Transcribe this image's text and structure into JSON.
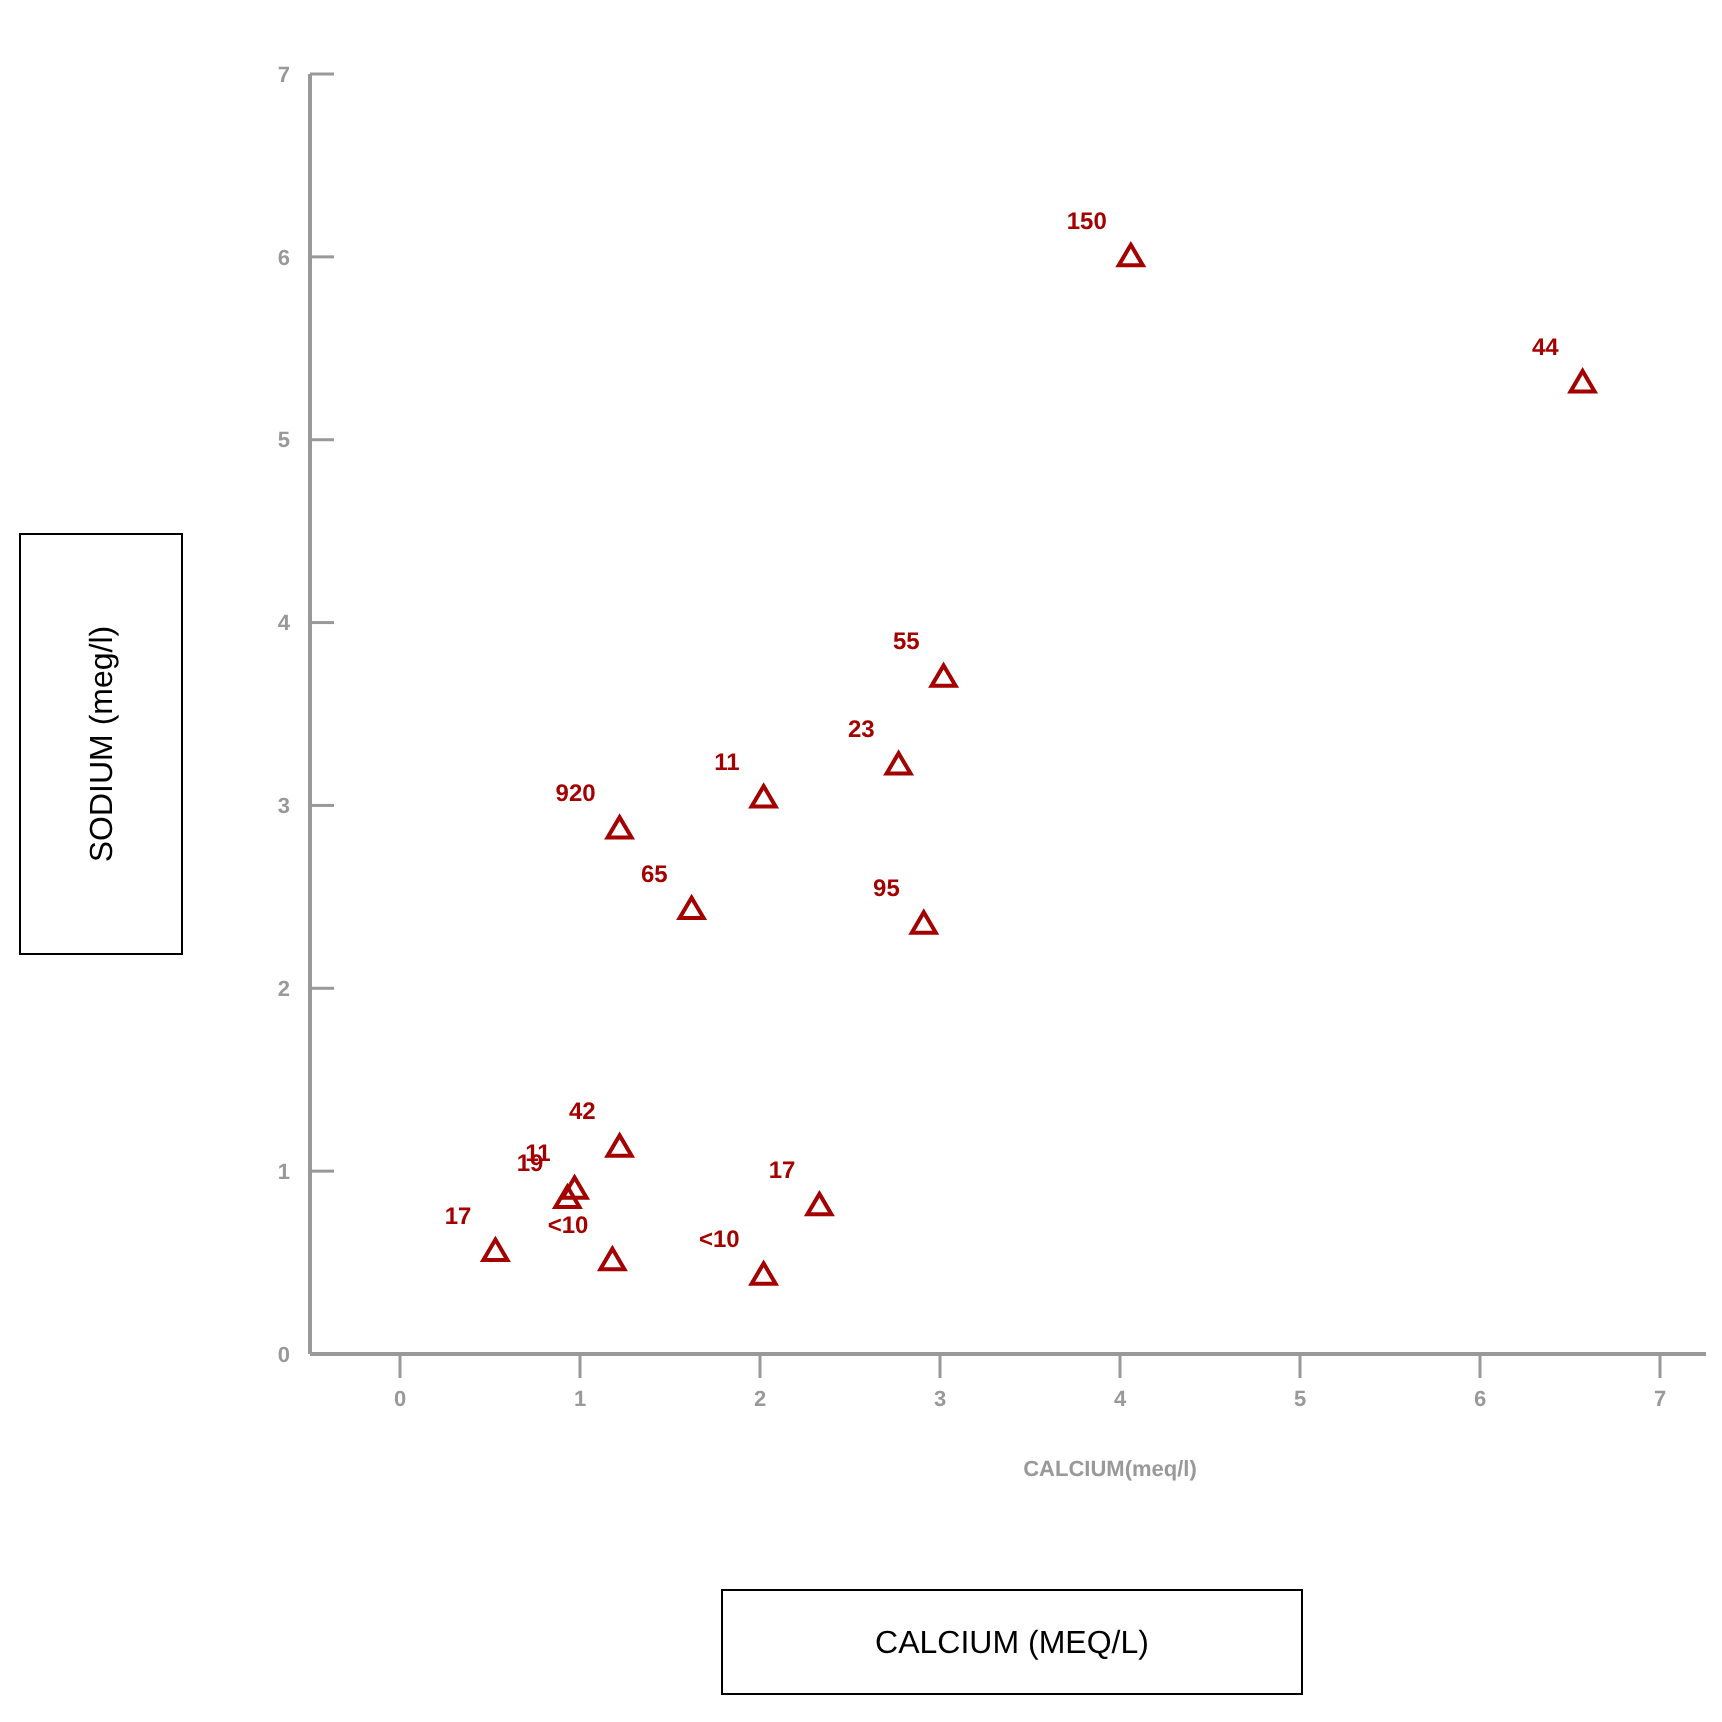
{
  "chart_data": {
    "type": "scatter",
    "xlabel": "CALCIUM(meq/l)",
    "ylabel": "SODIUM (meg/l)",
    "x": [
      4.06,
      6.57,
      3.02,
      2.77,
      2.02,
      1.22,
      1.62,
      2.91,
      1.22,
      0.97,
      0.93,
      0.53,
      1.18,
      2.02,
      2.33
    ],
    "series": [
      {
        "color": "#a50000",
        "values": [
          6.0,
          5.31,
          3.7,
          3.22,
          3.04,
          2.87,
          2.43,
          2.35,
          1.13,
          0.9,
          0.85,
          0.56,
          0.51,
          0.43,
          0.81
        ]
      }
    ],
    "xlim": [
      -0.5,
      7.3
    ],
    "xticks": [
      0,
      1,
      2,
      3,
      4,
      5,
      6,
      7
    ],
    "ylim": [
      0,
      7
    ],
    "yticks": [
      0,
      1,
      2,
      3,
      4,
      5,
      6,
      7
    ],
    "marker": "triangle",
    "grid": false,
    "annotations": [
      {
        "text": "150",
        "x": 4.06,
        "y": 6.0
      },
      {
        "text": "44",
        "x": 6.57,
        "y": 5.31
      },
      {
        "text": "55",
        "x": 3.02,
        "y": 3.7
      },
      {
        "text": "23",
        "x": 2.77,
        "y": 3.22
      },
      {
        "text": "11",
        "x": 2.02,
        "y": 3.04
      },
      {
        "text": "920",
        "x": 1.22,
        "y": 2.87
      },
      {
        "text": "65",
        "x": 1.62,
        "y": 2.43
      },
      {
        "text": "95",
        "x": 2.91,
        "y": 2.35
      },
      {
        "text": "42",
        "x": 1.22,
        "y": 1.13
      },
      {
        "text": "11",
        "x": 0.97,
        "y": 0.9
      },
      {
        "text": "19",
        "x": 0.93,
        "y": 0.85
      },
      {
        "text": "17",
        "x": 0.53,
        "y": 0.56
      },
      {
        "text": "<10",
        "x": 1.18,
        "y": 0.51
      },
      {
        "text": "<10",
        "x": 2.02,
        "y": 0.43
      },
      {
        "text": "17",
        "x": 2.33,
        "y": 0.81
      },
      "CALCIUM (MEQ/L)"
    ]
  }
}
